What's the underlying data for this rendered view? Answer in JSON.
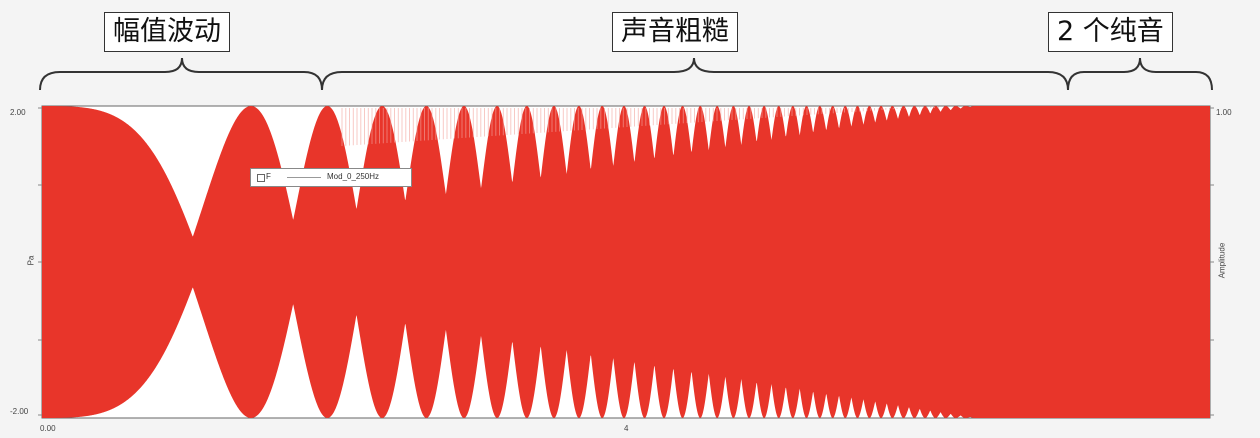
{
  "annotations": [
    {
      "id": "amplitude-fluctuation",
      "text": "幅值波动"
    },
    {
      "id": "rough-sound",
      "text": "声音粗糙"
    },
    {
      "id": "two-pure-tones",
      "text": "2 个纯音"
    }
  ],
  "colors": {
    "signal": "#e8352a",
    "background": "#ffffff",
    "grid": "#d0d0d0"
  },
  "chart_data": {
    "type": "area",
    "x_axis": {
      "tick_labels": [
        "0.00",
        "4"
      ]
    },
    "y_axis_left": {
      "tick_labels": [
        "2.00",
        "-2.00"
      ],
      "ylim": [
        -2,
        2
      ],
      "label": "Pa"
    },
    "y_axis_right": {
      "tick_labels": [
        "1.00"
      ],
      "label": "Amplitude"
    },
    "legend": {
      "placement": "top-left",
      "entries": [
        "F",
        "Mod_0_250Hz"
      ]
    },
    "series": [
      {
        "name": "F",
        "description_values": {
          "amplitude": 2,
          "modulation_frequency_start_hz": 0,
          "modulation_frequency_end_hz": 250
        }
      }
    ]
  }
}
